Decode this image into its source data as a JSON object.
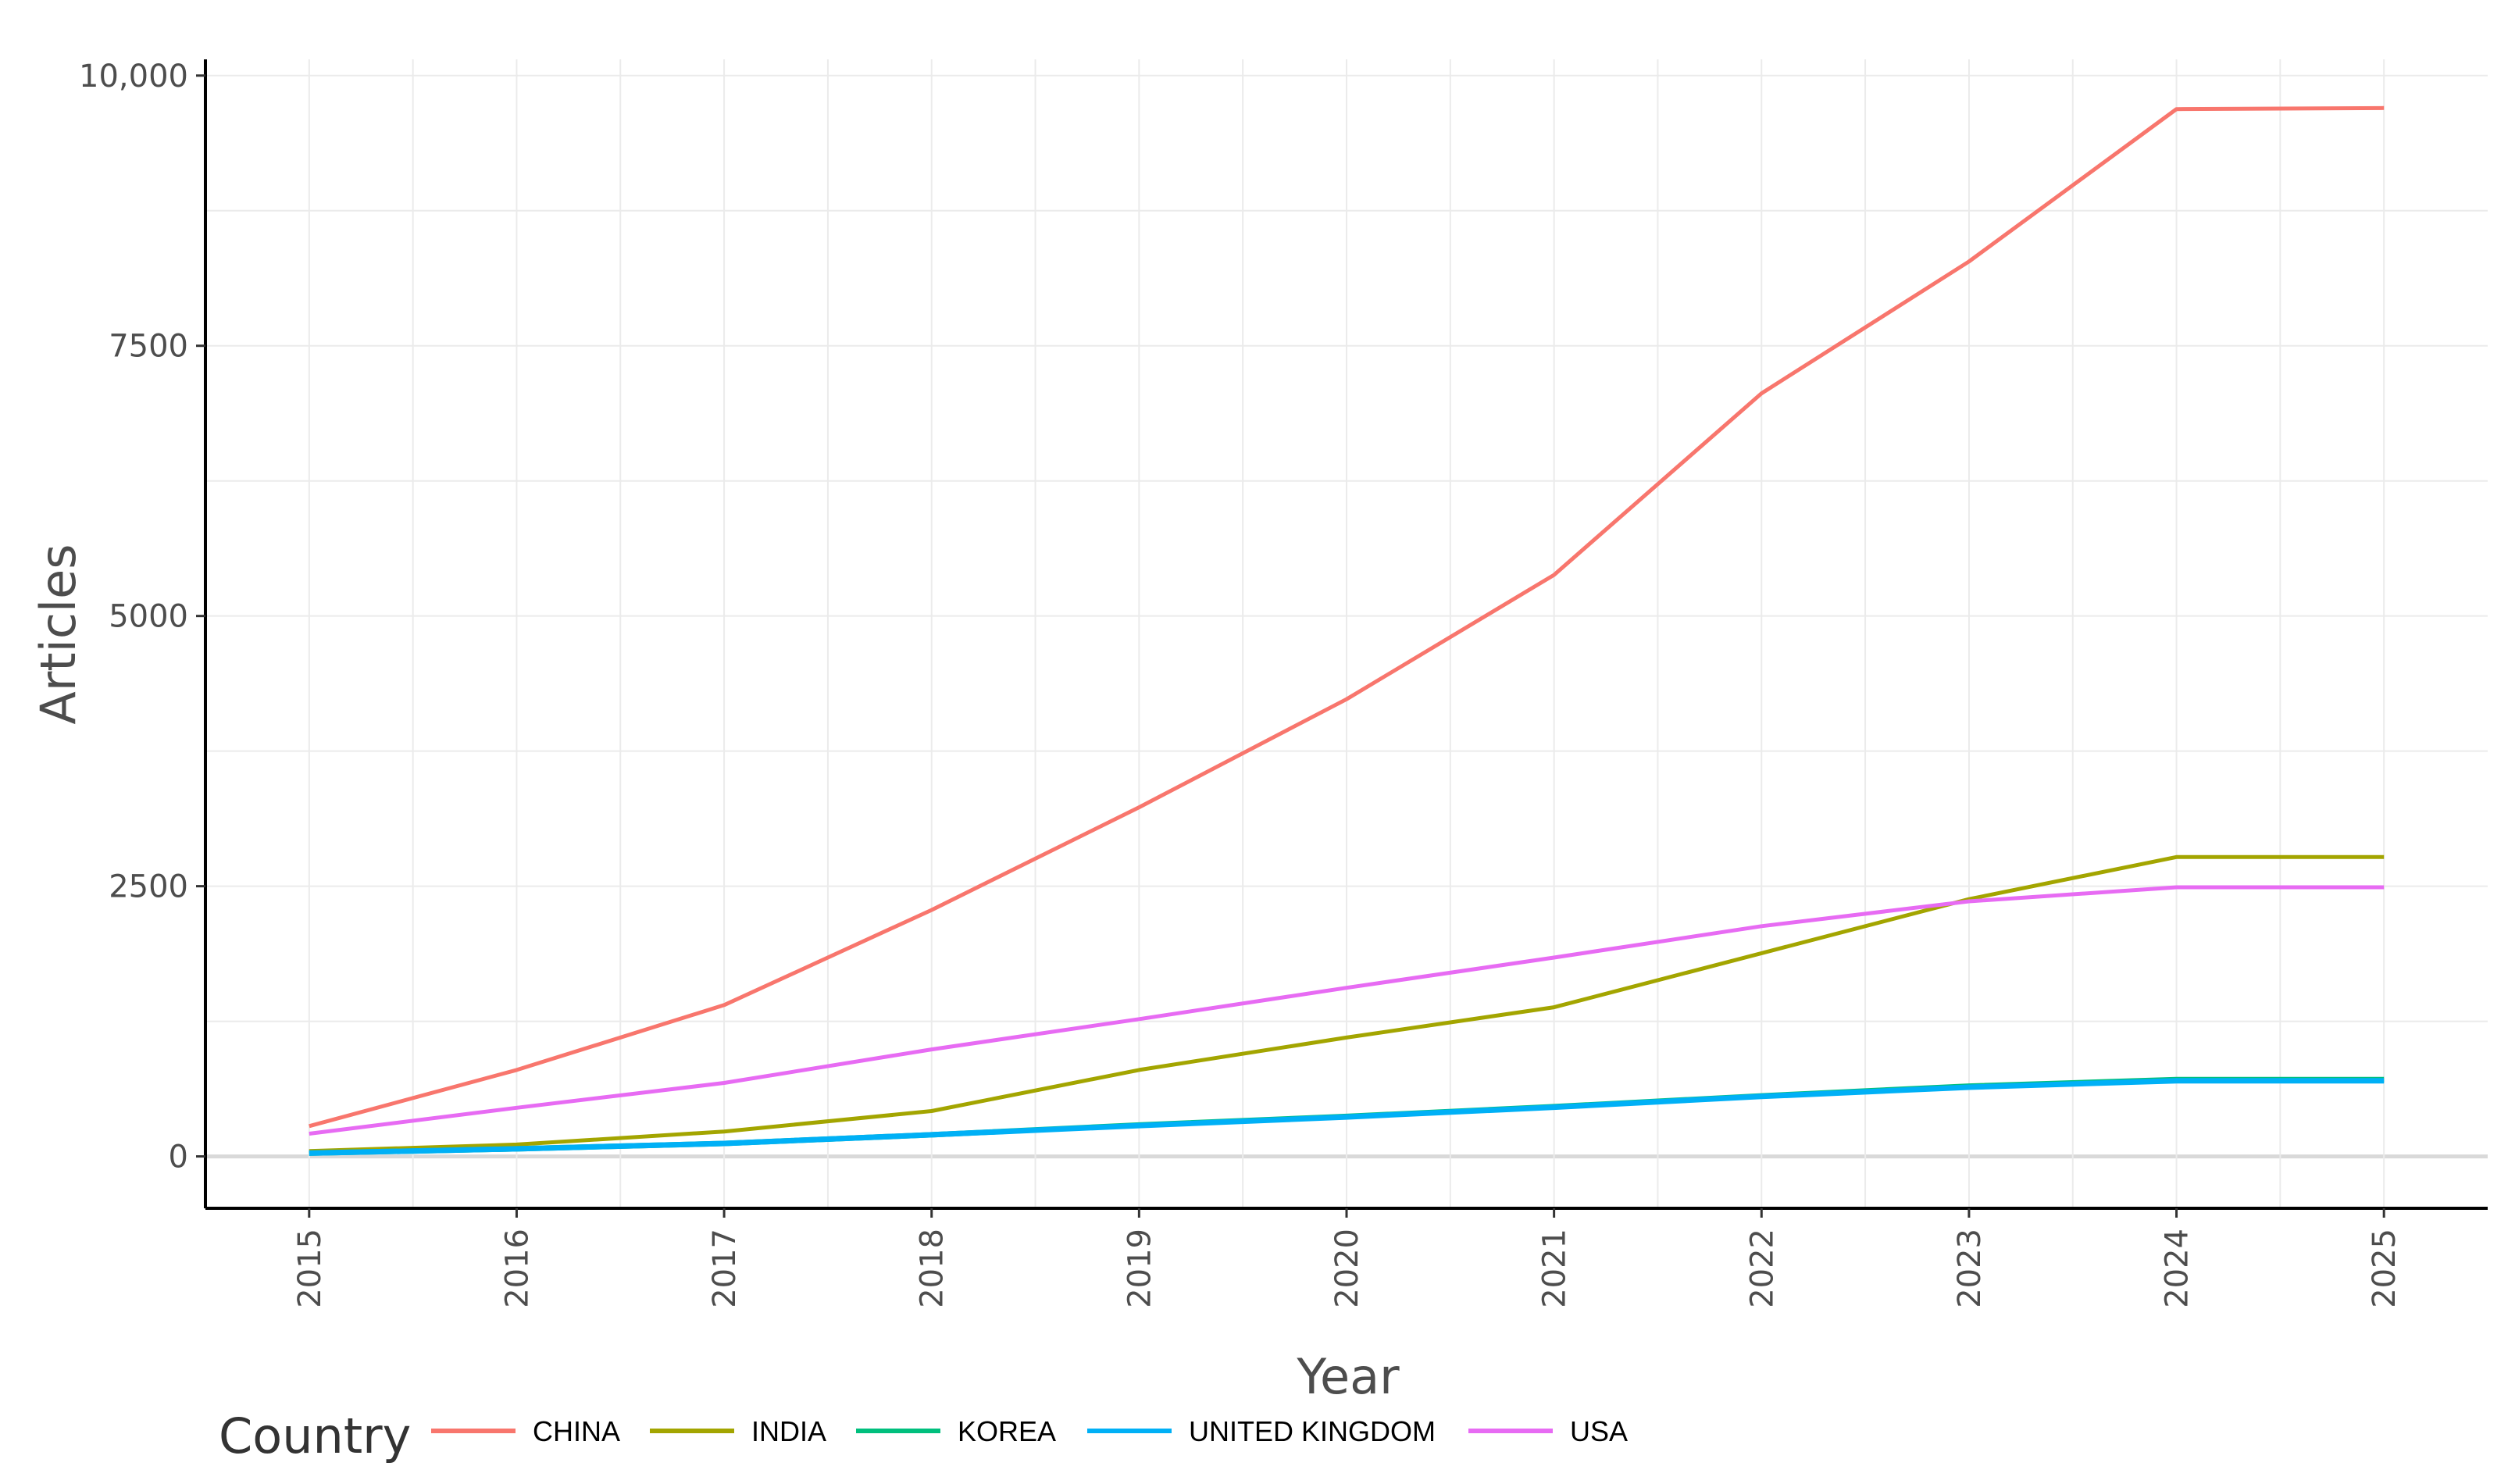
{
  "chart_data": {
    "type": "line",
    "xlabel": "Year",
    "ylabel": "Articles",
    "x": [
      2015,
      2016,
      2017,
      2018,
      2019,
      2020,
      2021,
      2022,
      2023,
      2024,
      2025
    ],
    "xlim": [
      2014.5,
      2025.5
    ],
    "ylim": [
      -480,
      10150
    ],
    "y_ticks": [
      0,
      2500,
      5000,
      7500,
      10000
    ],
    "y_tick_labels": [
      "0",
      "2500",
      "5000",
      "7500",
      "10,000"
    ],
    "grid": true,
    "legend_title": "Country",
    "legend_position": "bottom",
    "series": [
      {
        "name": "CHINA",
        "color": "#F8766D",
        "values": [
          280,
          800,
          1400,
          2280,
          3230,
          4230,
          5380,
          7060,
          8280,
          9690,
          9700
        ]
      },
      {
        "name": "INDIA",
        "color": "#A3A500",
        "values": [
          50,
          110,
          230,
          420,
          800,
          1100,
          1380,
          1880,
          2380,
          2770,
          2770
        ]
      },
      {
        "name": "KOREA",
        "color": "#00BF7D",
        "values": [
          30,
          70,
          120,
          200,
          290,
          370,
          460,
          560,
          650,
          710,
          710
        ]
      },
      {
        "name": "UNITED KINGDOM",
        "color": "#00B0F6",
        "values": [
          30,
          70,
          120,
          200,
          285,
          365,
          455,
          555,
          640,
          700,
          700
        ]
      },
      {
        "name": "USA",
        "color": "#E76BF3",
        "values": [
          210,
          450,
          680,
          990,
          1270,
          1560,
          1840,
          2130,
          2360,
          2490,
          2490
        ]
      }
    ]
  }
}
